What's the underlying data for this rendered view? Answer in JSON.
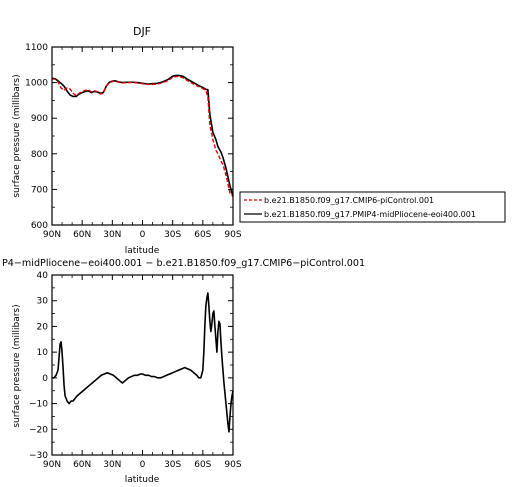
{
  "chart_data": [
    {
      "type": "line",
      "title": "DJF",
      "xlabel": "latitude",
      "ylabel": "surface pressure (millibars)",
      "xlim": [
        90,
        -90
      ],
      "ylim": [
        600,
        1100
      ],
      "xticks": [
        90,
        60,
        30,
        0,
        -30,
        -60,
        -90
      ],
      "xtick_labels": [
        "90N",
        "60N",
        "30N",
        "0",
        "30S",
        "60S",
        "90S"
      ],
      "yticks": [
        600,
        700,
        800,
        900,
        1000,
        1100
      ],
      "ytick_labels": [
        "600",
        "700",
        "800",
        "900",
        "1000",
        "1100"
      ],
      "legend_position": "right",
      "series": [
        {
          "name": "b.e21.B1850.f09_g17.CMIP6-piControl.001",
          "color": "#e00000",
          "dash": "dashed",
          "x": [
            90,
            87,
            84,
            81,
            78,
            75,
            72,
            69,
            66,
            63,
            60,
            57,
            54,
            51,
            48,
            45,
            42,
            39,
            36,
            33,
            30,
            27,
            24,
            20,
            15,
            10,
            5,
            0,
            -5,
            -10,
            -15,
            -20,
            -25,
            -30,
            -33,
            -36,
            -40,
            -45,
            -50,
            -55,
            -60,
            -63,
            -65,
            -67,
            -70,
            -73,
            -75,
            -78,
            -80,
            -83,
            -85,
            -87,
            -90
          ],
          "values": [
            1010,
            1010,
            1002,
            985,
            978,
            985,
            982,
            970,
            964,
            970,
            975,
            978,
            980,
            974,
            977,
            975,
            968,
            970,
            990,
            1000,
            1003,
            1004,
            1001,
            999,
            1000,
            1000,
            999,
            997,
            995,
            995,
            996,
            1000,
            1005,
            1015,
            1017,
            1017,
            1014,
            1005,
            997,
            990,
            983,
            978,
            960,
            880,
            840,
            810,
            800,
            780,
            770,
            740,
            715,
            690,
            680
          ]
        },
        {
          "name": "b.e21.B1850.f09_g17.PMIP4-midPliocene-eoi400.001",
          "color": "#000000",
          "dash": "solid",
          "x": [
            90,
            87,
            84,
            81,
            78,
            75,
            72,
            69,
            66,
            63,
            60,
            57,
            54,
            51,
            48,
            45,
            42,
            39,
            36,
            33,
            30,
            27,
            24,
            20,
            15,
            10,
            5,
            0,
            -5,
            -10,
            -15,
            -20,
            -25,
            -30,
            -33,
            -36,
            -40,
            -45,
            -50,
            -55,
            -60,
            -63,
            -65,
            -67,
            -70,
            -73,
            -75,
            -78,
            -80,
            -83,
            -85,
            -87,
            -90
          ],
          "values": [
            1012,
            1011,
            1005,
            998,
            990,
            976,
            965,
            961,
            961,
            968,
            972,
            975,
            977,
            972,
            975,
            974,
            970,
            972,
            990,
            1001,
            1004,
            1005,
            1002,
            1000,
            1001,
            1001,
            1000,
            998,
            996,
            997,
            998,
            1002,
            1008,
            1018,
            1020,
            1020,
            1018,
            1009,
            1001,
            993,
            986,
            981,
            980,
            910,
            860,
            840,
            820,
            805,
            790,
            760,
            735,
            710,
            680
          ]
        }
      ]
    },
    {
      "type": "line",
      "title": "P4−midPliocene−eoi400.001 − b.e21.B1850.f09_g17.CMIP6−piControl.001",
      "xlabel": "latitude",
      "ylabel": "surface pressure (millibars)",
      "xlim": [
        90,
        -90
      ],
      "ylim": [
        -30,
        40
      ],
      "xticks": [
        90,
        60,
        30,
        0,
        -30,
        -60,
        -90
      ],
      "xtick_labels": [
        "90N",
        "60N",
        "30N",
        "0",
        "30S",
        "60S",
        "90S"
      ],
      "yticks": [
        -30,
        -20,
        -10,
        0,
        10,
        20,
        30,
        40
      ],
      "ytick_labels": [
        "−30",
        "−20",
        "−10",
        "0",
        "10",
        "20",
        "30",
        "40"
      ],
      "series": [
        {
          "color": "#000000",
          "dash": "solid",
          "x": [
            90,
            88,
            86,
            84,
            83,
            82,
            81,
            80,
            79,
            78,
            77,
            75,
            73,
            71,
            69,
            67,
            65,
            62,
            59,
            56,
            53,
            50,
            47,
            44,
            41,
            38,
            35,
            32,
            29,
            26,
            23,
            20,
            17,
            14,
            11,
            8,
            5,
            2,
            0,
            -3,
            -6,
            -9,
            -12,
            -15,
            -18,
            -21,
            -24,
            -27,
            -30,
            -33,
            -36,
            -39,
            -42,
            -45,
            -48,
            -51,
            -54,
            -56,
            -58,
            -60,
            -61,
            -62,
            -63,
            -64,
            -65,
            -66,
            -67,
            -68,
            -69,
            -70,
            -71,
            -72,
            -73,
            -74,
            -75,
            -76,
            -77,
            -78,
            -79,
            -80,
            -81,
            -82,
            -83,
            -84,
            -85,
            -86,
            -87,
            -88,
            -89,
            -90
          ],
          "values": [
            0,
            0,
            1,
            3,
            8,
            13,
            14,
            10,
            4,
            -3,
            -7,
            -9,
            -10,
            -9,
            -9,
            -8,
            -7,
            -6,
            -5,
            -4,
            -3,
            -2,
            -1,
            0,
            1,
            1.5,
            2,
            1.5,
            1,
            0,
            -1,
            -2,
            -1,
            0,
            0.5,
            1,
            1,
            1.5,
            1.5,
            1,
            1,
            0.5,
            0.5,
            0,
            0,
            0.5,
            1,
            1.5,
            2,
            2.5,
            3,
            3.5,
            4,
            3.5,
            3,
            2,
            1,
            0,
            0,
            3,
            10,
            20,
            28,
            31,
            33,
            28,
            22,
            18,
            21,
            25,
            26,
            20,
            15,
            10,
            18,
            22,
            21,
            14,
            8,
            3,
            -2,
            -6,
            -10,
            -14,
            -18,
            -21,
            -15,
            -10,
            -7,
            -5
          ]
        }
      ]
    }
  ]
}
